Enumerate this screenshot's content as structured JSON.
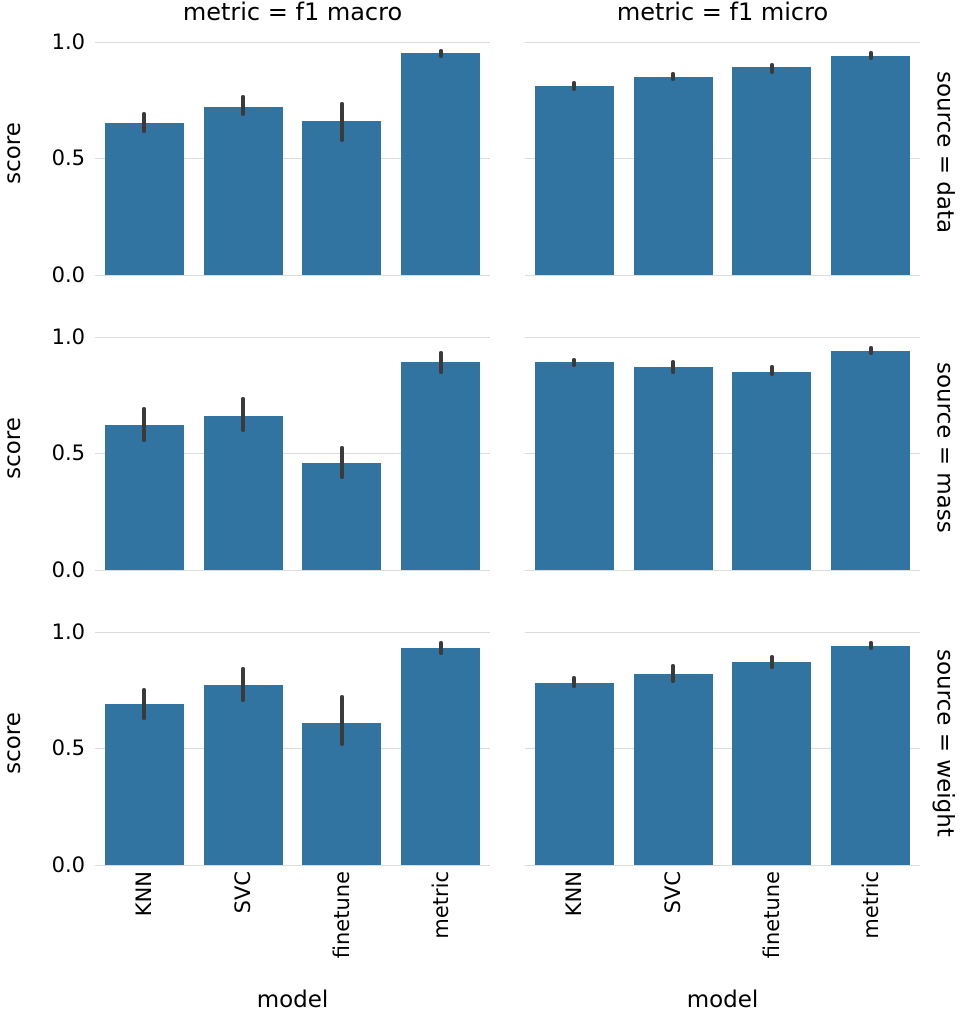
{
  "figure": {
    "ylabel": "score",
    "xlabel": "model",
    "yticks": [
      "0.0",
      "0.5",
      "1.0"
    ],
    "bar_color": "#3274a1",
    "error_color": "#3a3a3a",
    "grid_color": "#dcdcdc"
  },
  "chart_data": {
    "type": "bar",
    "facet_col_titles": [
      "metric = f1 macro",
      "metric = f1 micro"
    ],
    "facet_row_titles": [
      "source = data",
      "source = mass",
      "source = weight"
    ],
    "categories": [
      "KNN",
      "SVC",
      "finetune",
      "metric"
    ],
    "xlabel": "model",
    "ylabel": "score",
    "ylim": [
      0.0,
      1.0
    ],
    "yticks": [
      0.0,
      0.5,
      1.0
    ],
    "grid": "horizontal",
    "legend": null,
    "cells": [
      {
        "source": "data",
        "metric": "f1 macro",
        "values": [
          0.65,
          0.72,
          0.66,
          0.95
        ],
        "err_low": [
          0.61,
          0.68,
          0.57,
          0.93
        ],
        "err_high": [
          0.7,
          0.77,
          0.74,
          0.97
        ]
      },
      {
        "source": "data",
        "metric": "f1 micro",
        "values": [
          0.81,
          0.85,
          0.89,
          0.94
        ],
        "err_low": [
          0.79,
          0.83,
          0.86,
          0.92
        ],
        "err_high": [
          0.83,
          0.87,
          0.91,
          0.96
        ]
      },
      {
        "source": "mass",
        "metric": "f1 macro",
        "values": [
          0.62,
          0.66,
          0.46,
          0.89
        ],
        "err_low": [
          0.55,
          0.59,
          0.39,
          0.84
        ],
        "err_high": [
          0.7,
          0.74,
          0.53,
          0.94
        ]
      },
      {
        "source": "mass",
        "metric": "f1 micro",
        "values": [
          0.89,
          0.87,
          0.85,
          0.94
        ],
        "err_low": [
          0.87,
          0.84,
          0.83,
          0.92
        ],
        "err_high": [
          0.91,
          0.9,
          0.88,
          0.96
        ]
      },
      {
        "source": "weight",
        "metric": "f1 macro",
        "values": [
          0.69,
          0.77,
          0.61,
          0.93
        ],
        "err_low": [
          0.62,
          0.7,
          0.51,
          0.9
        ],
        "err_high": [
          0.76,
          0.85,
          0.73,
          0.96
        ]
      },
      {
        "source": "weight",
        "metric": "f1 micro",
        "values": [
          0.78,
          0.82,
          0.87,
          0.94
        ],
        "err_low": [
          0.76,
          0.78,
          0.84,
          0.92
        ],
        "err_high": [
          0.81,
          0.86,
          0.9,
          0.96
        ]
      }
    ]
  }
}
